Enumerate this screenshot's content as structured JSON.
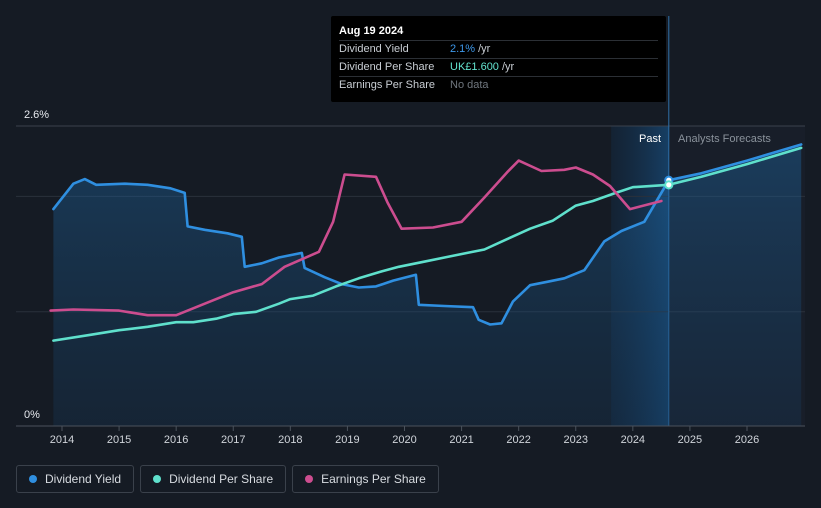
{
  "tooltip": {
    "date": "Aug 19 2024",
    "rows": [
      {
        "label": "Dividend Yield",
        "value": "2.1%",
        "unit": "/yr"
      },
      {
        "label": "Dividend Per Share",
        "value": "UK£1.600",
        "unit": "/yr"
      },
      {
        "label": "Earnings Per Share",
        "value": "No data",
        "unit": ""
      }
    ]
  },
  "zones": {
    "past": "Past",
    "forecast": "Analysts Forecasts"
  },
  "legend": [
    {
      "label": "Dividend Yield",
      "color": "#2f8fe0"
    },
    {
      "label": "Dividend Per Share",
      "color": "#5fe0cc"
    },
    {
      "label": "Earnings Per Share",
      "color": "#cc4d8f"
    }
  ],
  "chart_data": {
    "type": "line",
    "y_tick_labels": [
      "2.6%",
      "0%"
    ],
    "ylim": [
      0,
      2.6
    ],
    "xlim": [
      2013.75,
      2026.95
    ],
    "x_ticks": [
      2014,
      2015,
      2016,
      2017,
      2018,
      2019,
      2020,
      2021,
      2022,
      2023,
      2024,
      2025,
      2026
    ],
    "past_shade_start": 2023.62,
    "current_x": 2024.63,
    "gridline_values": [
      2.6,
      1.99,
      0.99
    ],
    "series": [
      {
        "name": "Dividend Yield",
        "color": "#2f8fe0",
        "area": true,
        "points": [
          [
            2013.85,
            1.88
          ],
          [
            2014.2,
            2.1
          ],
          [
            2014.4,
            2.14
          ],
          [
            2014.6,
            2.09
          ],
          [
            2015.1,
            2.1
          ],
          [
            2015.5,
            2.09
          ],
          [
            2015.9,
            2.06
          ],
          [
            2016.15,
            2.02
          ],
          [
            2016.2,
            1.73
          ],
          [
            2016.5,
            1.7
          ],
          [
            2016.9,
            1.67
          ],
          [
            2017.15,
            1.64
          ],
          [
            2017.2,
            1.38
          ],
          [
            2017.5,
            1.41
          ],
          [
            2017.8,
            1.46
          ],
          [
            2018.2,
            1.5
          ],
          [
            2018.25,
            1.37
          ],
          [
            2018.6,
            1.29
          ],
          [
            2018.9,
            1.23
          ],
          [
            2019.2,
            1.2
          ],
          [
            2019.5,
            1.21
          ],
          [
            2019.8,
            1.26
          ],
          [
            2020.2,
            1.31
          ],
          [
            2020.25,
            1.05
          ],
          [
            2020.7,
            1.04
          ],
          [
            2021.2,
            1.03
          ],
          [
            2021.3,
            0.92
          ],
          [
            2021.5,
            0.88
          ],
          [
            2021.7,
            0.89
          ],
          [
            2021.9,
            1.08
          ],
          [
            2022.2,
            1.22
          ],
          [
            2022.5,
            1.25
          ],
          [
            2022.8,
            1.28
          ],
          [
            2023.15,
            1.35
          ],
          [
            2023.5,
            1.6
          ],
          [
            2023.8,
            1.69
          ],
          [
            2024.2,
            1.77
          ],
          [
            2024.63,
            2.13
          ],
          [
            2025.2,
            2.19
          ],
          [
            2026.0,
            2.3
          ],
          [
            2026.95,
            2.44
          ]
        ]
      },
      {
        "name": "Dividend Per Share",
        "color": "#5fe0cc",
        "area": false,
        "points": [
          [
            2013.85,
            0.74
          ],
          [
            2014.5,
            0.79
          ],
          [
            2015.0,
            0.83
          ],
          [
            2015.5,
            0.86
          ],
          [
            2016.0,
            0.9
          ],
          [
            2016.3,
            0.9
          ],
          [
            2016.7,
            0.93
          ],
          [
            2017.0,
            0.97
          ],
          [
            2017.4,
            0.99
          ],
          [
            2017.8,
            1.06
          ],
          [
            2018.0,
            1.1
          ],
          [
            2018.4,
            1.13
          ],
          [
            2018.8,
            1.21
          ],
          [
            2019.2,
            1.28
          ],
          [
            2019.6,
            1.34
          ],
          [
            2019.9,
            1.38
          ],
          [
            2020.3,
            1.42
          ],
          [
            2020.7,
            1.46
          ],
          [
            2021.1,
            1.5
          ],
          [
            2021.4,
            1.53
          ],
          [
            2021.8,
            1.62
          ],
          [
            2022.2,
            1.71
          ],
          [
            2022.6,
            1.78
          ],
          [
            2023.0,
            1.91
          ],
          [
            2023.3,
            1.95
          ],
          [
            2023.7,
            2.02
          ],
          [
            2024.0,
            2.07
          ],
          [
            2024.63,
            2.09
          ],
          [
            2025.2,
            2.16
          ],
          [
            2026.0,
            2.27
          ],
          [
            2026.95,
            2.41
          ]
        ]
      },
      {
        "name": "Earnings Per Share",
        "color": "#cc4d8f",
        "area": false,
        "points": [
          [
            2013.8,
            1.0
          ],
          [
            2014.2,
            1.01
          ],
          [
            2015.0,
            1.0
          ],
          [
            2015.5,
            0.96
          ],
          [
            2016.0,
            0.96
          ],
          [
            2016.5,
            1.06
          ],
          [
            2017.0,
            1.16
          ],
          [
            2017.5,
            1.23
          ],
          [
            2017.9,
            1.38
          ],
          [
            2018.5,
            1.51
          ],
          [
            2018.75,
            1.77
          ],
          [
            2018.95,
            2.18
          ],
          [
            2019.5,
            2.16
          ],
          [
            2019.7,
            1.94
          ],
          [
            2019.95,
            1.71
          ],
          [
            2020.5,
            1.72
          ],
          [
            2021.0,
            1.77
          ],
          [
            2021.4,
            1.98
          ],
          [
            2021.8,
            2.2
          ],
          [
            2022.0,
            2.3
          ],
          [
            2022.4,
            2.21
          ],
          [
            2022.8,
            2.22
          ],
          [
            2023.0,
            2.24
          ],
          [
            2023.3,
            2.18
          ],
          [
            2023.6,
            2.08
          ],
          [
            2023.95,
            1.88
          ],
          [
            2024.5,
            1.95
          ]
        ]
      }
    ]
  }
}
